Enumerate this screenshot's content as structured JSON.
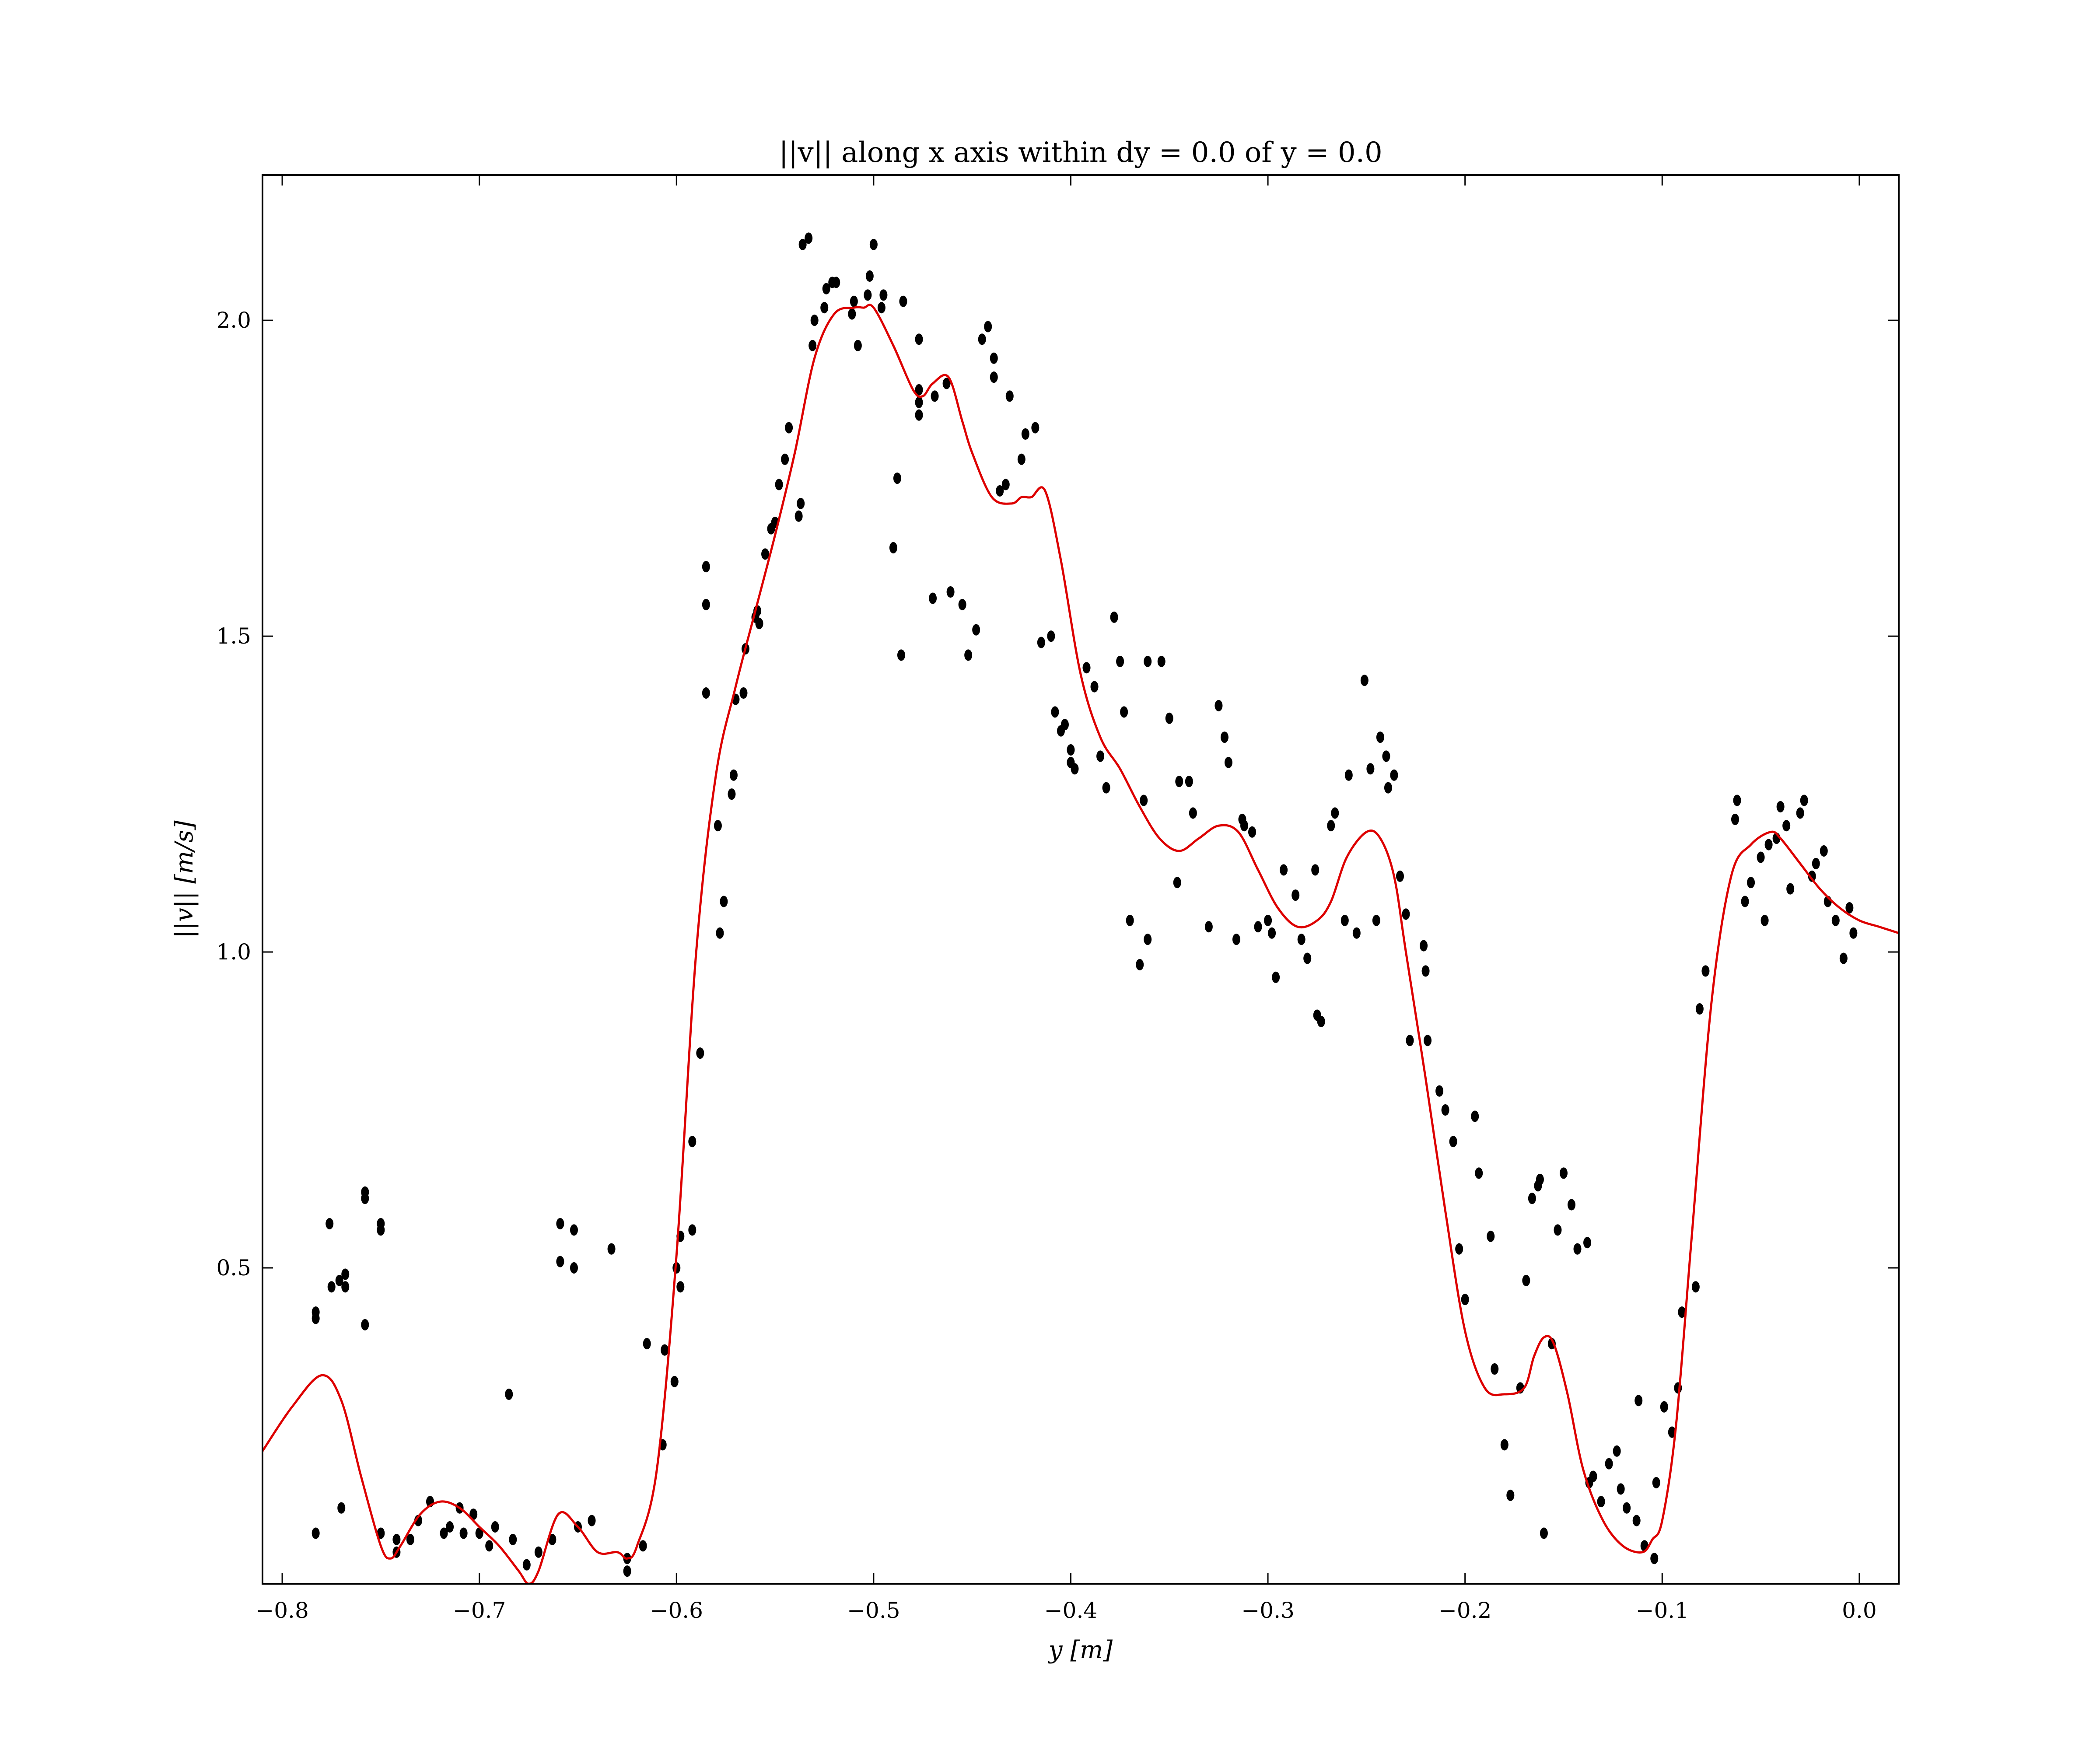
{
  "chart_data": {
    "type": "scatter",
    "title": "||v|| along x axis within dy = 0.0 of y = 0.0",
    "xlabel": "y [m]",
    "ylabel": "||v|| [m/s]",
    "xlim": [
      -0.81,
      0.02
    ],
    "ylim": [
      0.0,
      2.23
    ],
    "xticks": [
      -0.8,
      -0.7,
      -0.6,
      -0.5,
      -0.4,
      -0.3,
      -0.2,
      -0.1,
      0.0
    ],
    "xtick_labels": [
      "−0.8",
      "−0.7",
      "−0.6",
      "−0.5",
      "−0.4",
      "−0.3",
      "−0.2",
      "−0.1",
      "0.0"
    ],
    "yticks": [
      0.5,
      1.0,
      1.5,
      2.0
    ],
    "ytick_labels": [
      "0.5",
      "1.0",
      "1.5",
      "2.0"
    ],
    "grid": false,
    "legend": "none",
    "colors": {
      "points": "#000000",
      "curve": "#dd0000",
      "axes": "#000000"
    },
    "series": [
      {
        "kind": "points",
        "x": [
          -0.783,
          -0.783,
          -0.783,
          -0.776,
          -0.775,
          -0.771,
          -0.77,
          -0.768,
          -0.768,
          -0.758,
          -0.758,
          -0.758,
          -0.75,
          -0.75,
          -0.75,
          -0.742,
          -0.742,
          -0.735,
          -0.731,
          -0.725,
          -0.718,
          -0.715,
          -0.71,
          -0.708,
          -0.703,
          -0.7,
          -0.695,
          -0.692,
          -0.685,
          -0.683,
          -0.676,
          -0.67,
          -0.663,
          -0.659,
          -0.659,
          -0.652,
          -0.652,
          -0.65,
          -0.643,
          -0.633,
          -0.625,
          -0.625,
          -0.617,
          -0.615,
          -0.607,
          -0.606,
          -0.601,
          -0.6,
          -0.598,
          -0.598,
          -0.592,
          -0.592,
          -0.588,
          -0.585,
          -0.585,
          -0.585,
          -0.579,
          -0.578,
          -0.576,
          -0.572,
          -0.571,
          -0.57,
          -0.566,
          -0.565,
          -0.56,
          -0.559,
          -0.558,
          -0.555,
          -0.552,
          -0.55,
          -0.548,
          -0.545,
          -0.543,
          -0.538,
          -0.537,
          -0.536,
          -0.533,
          -0.531,
          -0.53,
          -0.525,
          -0.524,
          -0.521,
          -0.519,
          -0.511,
          -0.51,
          -0.508,
          -0.503,
          -0.502,
          -0.5,
          -0.496,
          -0.495,
          -0.49,
          -0.488,
          -0.486,
          -0.485,
          -0.477,
          -0.477,
          -0.477,
          -0.477,
          -0.47,
          -0.469,
          -0.463,
          -0.461,
          -0.455,
          -0.452,
          -0.448,
          -0.445,
          -0.442,
          -0.439,
          -0.439,
          -0.436,
          -0.433,
          -0.431,
          -0.425,
          -0.423,
          -0.418,
          -0.415,
          -0.41,
          -0.408,
          -0.405,
          -0.403,
          -0.4,
          -0.4,
          -0.398,
          -0.392,
          -0.388,
          -0.385,
          -0.382,
          -0.378,
          -0.375,
          -0.373,
          -0.37,
          -0.365,
          -0.363,
          -0.361,
          -0.361,
          -0.354,
          -0.35,
          -0.346,
          -0.345,
          -0.34,
          -0.338,
          -0.33,
          -0.325,
          -0.322,
          -0.32,
          -0.316,
          -0.313,
          -0.312,
          -0.308,
          -0.305,
          -0.3,
          -0.298,
          -0.296,
          -0.292,
          -0.286,
          -0.283,
          -0.28,
          -0.276,
          -0.275,
          -0.273,
          -0.268,
          -0.266,
          -0.261,
          -0.259,
          -0.255,
          -0.251,
          -0.248,
          -0.245,
          -0.243,
          -0.24,
          -0.239,
          -0.236,
          -0.233,
          -0.23,
          -0.228,
          -0.221,
          -0.22,
          -0.219,
          -0.213,
          -0.21,
          -0.206,
          -0.203,
          -0.2,
          -0.195,
          -0.193,
          -0.187,
          -0.185,
          -0.18,
          -0.177,
          -0.172,
          -0.169,
          -0.166,
          -0.163,
          -0.162,
          -0.16,
          -0.156,
          -0.153,
          -0.15,
          -0.146,
          -0.143,
          -0.138,
          -0.137,
          -0.135,
          -0.131,
          -0.127,
          -0.123,
          -0.121,
          -0.118,
          -0.113,
          -0.112,
          -0.109,
          -0.104,
          -0.103,
          -0.099,
          -0.095,
          -0.092,
          -0.09,
          -0.083,
          -0.081,
          -0.078,
          -0.063,
          -0.062,
          -0.058,
          -0.055,
          -0.05,
          -0.048,
          -0.046,
          -0.042,
          -0.04,
          -0.037,
          -0.035,
          -0.03,
          -0.028,
          -0.024,
          -0.022,
          -0.018,
          -0.016,
          -0.012,
          -0.008,
          -0.005,
          -0.003
        ],
        "y": [
          0.42,
          0.43,
          0.08,
          0.57,
          0.47,
          0.48,
          0.12,
          0.47,
          0.49,
          0.61,
          0.62,
          0.41,
          0.56,
          0.57,
          0.08,
          0.07,
          0.05,
          0.07,
          0.1,
          0.13,
          0.08,
          0.09,
          0.12,
          0.08,
          0.11,
          0.08,
          0.06,
          0.09,
          0.3,
          0.07,
          0.03,
          0.05,
          0.07,
          0.57,
          0.51,
          0.56,
          0.5,
          0.09,
          0.1,
          0.53,
          0.04,
          0.02,
          0.06,
          0.38,
          0.22,
          0.37,
          0.32,
          0.5,
          0.47,
          0.55,
          0.56,
          0.7,
          0.84,
          1.41,
          1.55,
          1.61,
          1.2,
          1.03,
          1.08,
          1.25,
          1.28,
          1.4,
          1.41,
          1.48,
          1.53,
          1.54,
          1.52,
          1.63,
          1.67,
          1.68,
          1.74,
          1.78,
          1.83,
          1.69,
          1.71,
          2.12,
          2.13,
          1.96,
          2.0,
          2.02,
          2.05,
          2.06,
          2.06,
          2.01,
          2.03,
          1.96,
          2.04,
          2.07,
          2.12,
          2.02,
          2.04,
          1.64,
          1.75,
          1.47,
          2.03,
          1.87,
          1.97,
          1.89,
          1.85,
          1.56,
          1.88,
          1.9,
          1.57,
          1.55,
          1.47,
          1.51,
          1.97,
          1.99,
          1.94,
          1.91,
          1.73,
          1.74,
          1.88,
          1.78,
          1.82,
          1.83,
          1.49,
          1.5,
          1.38,
          1.35,
          1.36,
          1.32,
          1.3,
          1.29,
          1.45,
          1.42,
          1.31,
          1.26,
          1.53,
          1.46,
          1.38,
          1.05,
          0.98,
          1.24,
          1.02,
          1.46,
          1.46,
          1.37,
          1.11,
          1.27,
          1.27,
          1.22,
          1.04,
          1.39,
          1.34,
          1.3,
          1.02,
          1.21,
          1.2,
          1.19,
          1.04,
          1.05,
          1.03,
          0.96,
          1.13,
          1.09,
          1.02,
          0.99,
          1.13,
          0.9,
          0.89,
          1.2,
          1.22,
          1.05,
          1.28,
          1.03,
          1.43,
          1.29,
          1.05,
          1.34,
          1.31,
          1.26,
          1.28,
          1.12,
          1.06,
          0.86,
          1.01,
          0.97,
          0.86,
          0.78,
          0.75,
          0.7,
          0.53,
          0.45,
          0.74,
          0.65,
          0.55,
          0.34,
          0.22,
          0.14,
          0.31,
          0.48,
          0.61,
          0.63,
          0.64,
          0.08,
          0.38,
          0.56,
          0.65,
          0.6,
          0.53,
          0.54,
          0.16,
          0.17,
          0.13,
          0.19,
          0.21,
          0.15,
          0.12,
          0.1,
          0.29,
          0.06,
          0.04,
          0.16,
          0.28,
          0.24,
          0.31,
          0.43,
          0.47,
          0.91,
          0.97,
          1.21,
          1.24,
          1.08,
          1.11,
          1.15,
          1.05,
          1.17,
          1.18,
          1.23,
          1.2,
          1.1,
          1.22,
          1.24,
          1.12,
          1.14,
          1.16,
          1.08,
          1.05,
          0.99,
          1.07,
          1.03
        ]
      },
      {
        "kind": "smooth-curve",
        "x": [
          -0.81,
          -0.795,
          -0.78,
          -0.77,
          -0.76,
          -0.75,
          -0.745,
          -0.74,
          -0.73,
          -0.72,
          -0.71,
          -0.7,
          -0.69,
          -0.68,
          -0.675,
          -0.67,
          -0.66,
          -0.65,
          -0.64,
          -0.63,
          -0.625,
          -0.62,
          -0.61,
          -0.6,
          -0.59,
          -0.58,
          -0.57,
          -0.56,
          -0.55,
          -0.54,
          -0.53,
          -0.52,
          -0.51,
          -0.505,
          -0.5,
          -0.49,
          -0.48,
          -0.475,
          -0.47,
          -0.462,
          -0.455,
          -0.45,
          -0.44,
          -0.43,
          -0.425,
          -0.42,
          -0.413,
          -0.405,
          -0.395,
          -0.385,
          -0.375,
          -0.365,
          -0.355,
          -0.345,
          -0.335,
          -0.325,
          -0.315,
          -0.305,
          -0.295,
          -0.285,
          -0.275,
          -0.268,
          -0.26,
          -0.25,
          -0.243,
          -0.236,
          -0.23,
          -0.22,
          -0.21,
          -0.2,
          -0.19,
          -0.18,
          -0.17,
          -0.165,
          -0.16,
          -0.155,
          -0.148,
          -0.14,
          -0.13,
          -0.12,
          -0.11,
          -0.105,
          -0.1,
          -0.093,
          -0.085,
          -0.075,
          -0.065,
          -0.055,
          -0.045,
          -0.04,
          -0.03,
          -0.02,
          -0.01,
          0.0,
          0.01,
          0.02
        ],
        "y": [
          0.21,
          0.28,
          0.33,
          0.29,
          0.17,
          0.06,
          0.04,
          0.06,
          0.11,
          0.13,
          0.12,
          0.09,
          0.06,
          0.02,
          0.0,
          0.02,
          0.11,
          0.09,
          0.05,
          0.05,
          0.04,
          0.06,
          0.18,
          0.52,
          1.0,
          1.28,
          1.42,
          1.54,
          1.66,
          1.79,
          1.94,
          2.01,
          2.02,
          2.02,
          2.02,
          1.96,
          1.89,
          1.88,
          1.9,
          1.91,
          1.84,
          1.79,
          1.72,
          1.71,
          1.72,
          1.72,
          1.73,
          1.62,
          1.44,
          1.34,
          1.29,
          1.23,
          1.18,
          1.16,
          1.18,
          1.2,
          1.19,
          1.13,
          1.07,
          1.04,
          1.05,
          1.08,
          1.15,
          1.19,
          1.18,
          1.12,
          1.0,
          0.8,
          0.59,
          0.4,
          0.31,
          0.3,
          0.31,
          0.36,
          0.39,
          0.38,
          0.3,
          0.18,
          0.1,
          0.06,
          0.05,
          0.07,
          0.1,
          0.25,
          0.55,
          0.92,
          1.12,
          1.17,
          1.19,
          1.18,
          1.14,
          1.1,
          1.07,
          1.05,
          1.04,
          1.03
        ]
      }
    ]
  }
}
